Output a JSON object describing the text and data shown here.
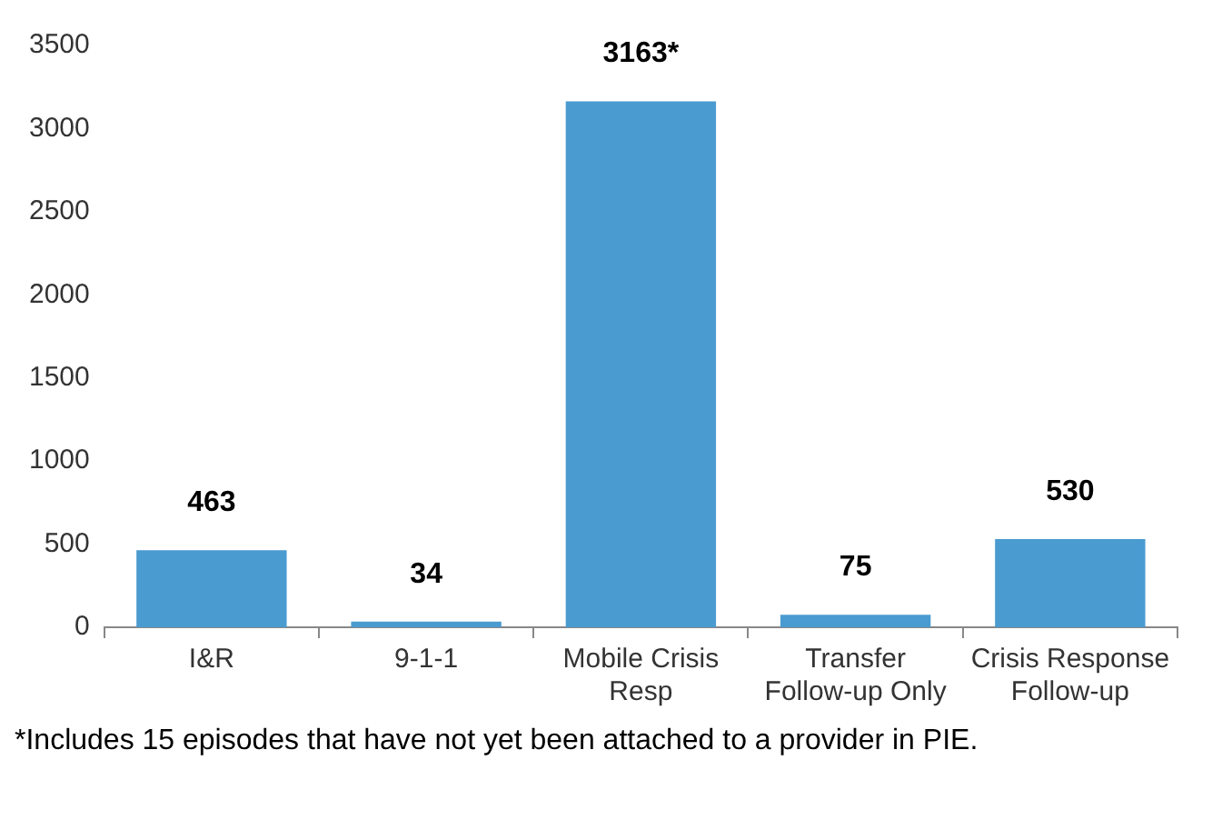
{
  "chart_data": {
    "type": "bar",
    "categories": [
      "I&R",
      "9-1-1",
      "Mobile Crisis Resp",
      "Transfer Follow-up Only",
      "Crisis Response Follow-up"
    ],
    "values": [
      463,
      34,
      3163,
      75,
      530
    ],
    "value_labels": [
      "463",
      "34",
      "3163*",
      "75",
      "530"
    ],
    "color": "#4a9bd0",
    "ylim": [
      0,
      3500
    ],
    "yticks": [
      0,
      500,
      1000,
      1500,
      2000,
      2500,
      3000,
      3500
    ],
    "grid": false,
    "legend": false,
    "annotations": [
      "*Includes 15 episodes that have not yet been attached to a provider in PIE."
    ]
  }
}
